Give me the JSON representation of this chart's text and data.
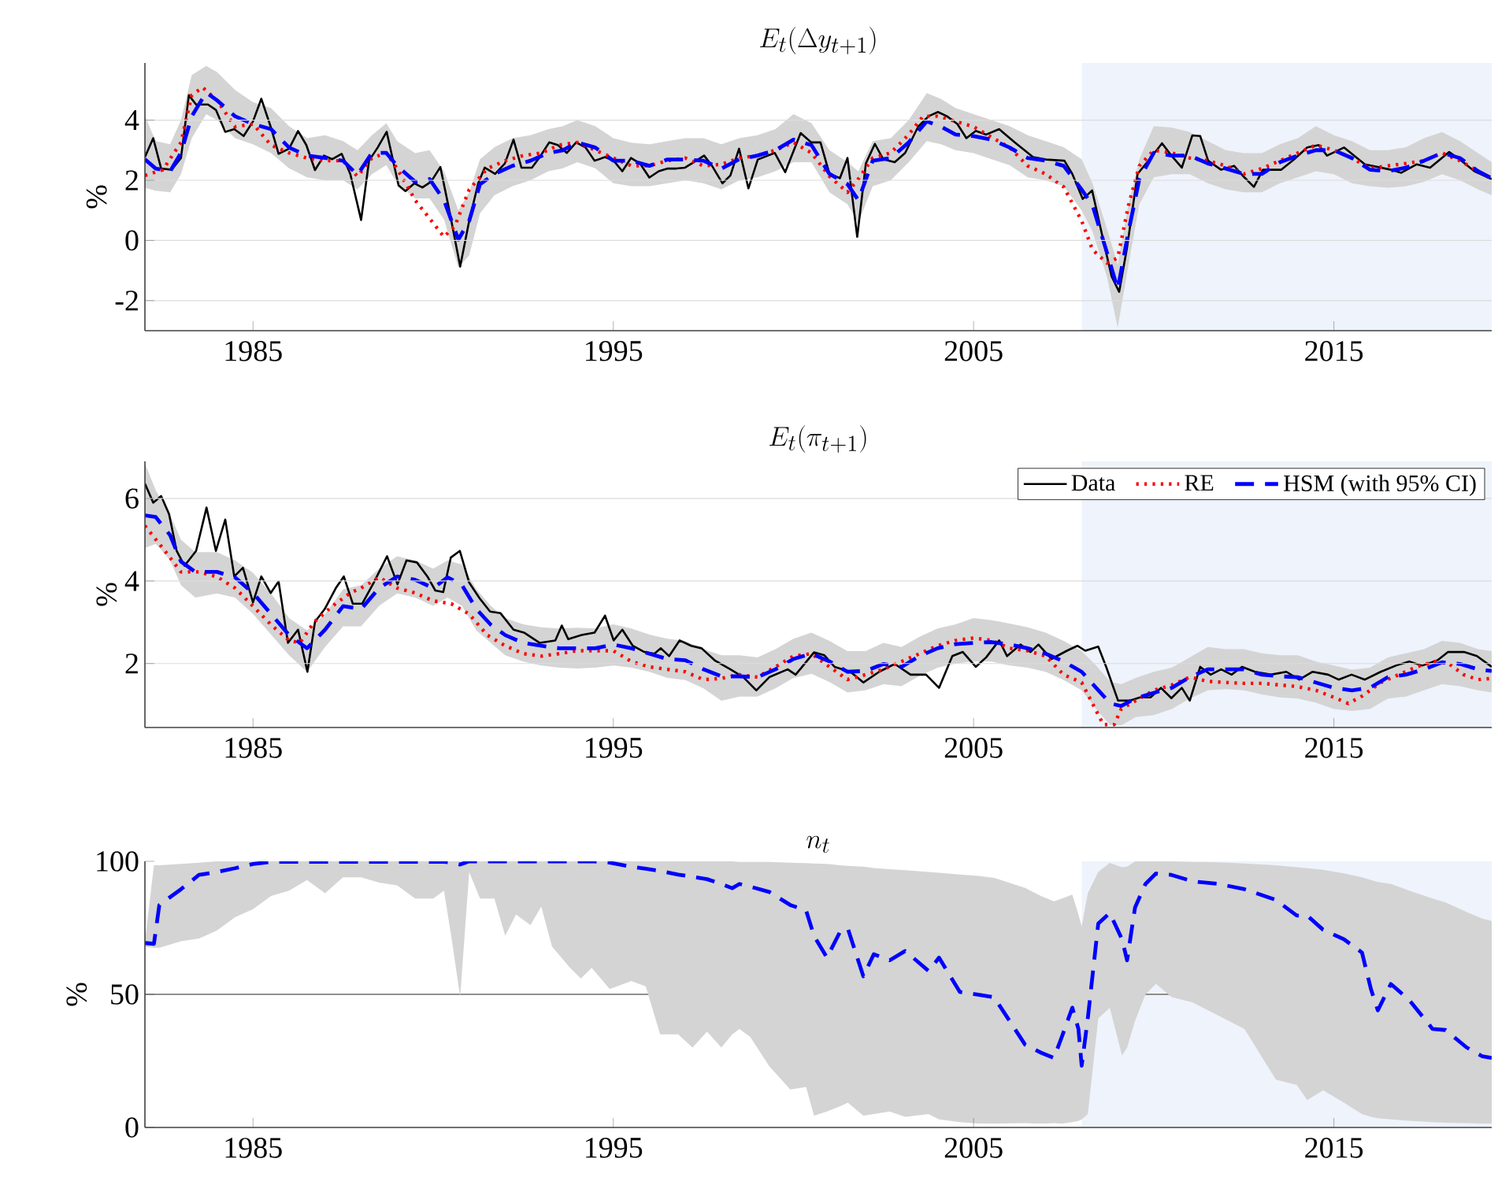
{
  "chart_data": [
    {
      "type": "line",
      "title": "E_t(\\Delta y_{t+1})",
      "ylabel": "%",
      "xlim": [
        1982,
        2019.38
      ],
      "xticks": [
        1985,
        1995,
        2005,
        2015
      ],
      "ylim": [
        -3,
        5.9
      ],
      "yticks": [
        -2,
        0,
        2,
        4
      ],
      "grid": "y",
      "bands": [
        {
          "axis": "x",
          "from": 2008,
          "to": 2019.38,
          "color": "#eef3fc"
        }
      ],
      "series": [
        {
          "color": "#000000",
          "line_style": "solid",
          "x": [
            1982.0,
            1982.23,
            1982.45,
            1982.74,
            1983.0,
            1983.22,
            1983.42,
            1983.75,
            1983.97,
            1984.23,
            1984.48,
            1984.74,
            1985.0,
            1985.23,
            1985.49,
            1985.71,
            1986.0,
            1986.25,
            1986.48,
            1986.72,
            1986.97,
            1987.2,
            1987.46,
            1987.7,
            1988.0,
            1988.22,
            1988.46,
            1988.71,
            1989.04,
            1989.23,
            1989.48,
            1989.7,
            1989.94,
            1990.2,
            1990.45,
            1990.75,
            1991.0,
            1991.25,
            1991.43,
            1991.72,
            1991.99,
            1992.23,
            1992.45,
            1992.74,
            1992.96,
            1993.22,
            1993.46,
            1993.71,
            1993.97,
            1994.23,
            1994.48,
            1994.77,
            1995.01,
            1995.25,
            1995.49,
            1995.74,
            1996.0,
            1996.26,
            1996.51,
            1996.75,
            1996.99,
            1997.23,
            1997.52,
            1997.74,
            1998.03,
            1998.25,
            1998.49,
            1998.75,
            1999.01,
            1999.48,
            1999.77,
            2000.2,
            2000.49,
            2000.75,
            2001.0,
            2001.29,
            2001.5,
            2001.77,
            2002.01,
            2002.26,
            2002.49,
            2002.81,
            2003.1,
            2003.46,
            2003.75,
            2004.01,
            2004.26,
            2004.55,
            2004.8,
            2005.06,
            2005.35,
            2005.71,
            2006.14,
            2006.65,
            2007.01,
            2007.52,
            2007.74,
            2008.03,
            2008.29,
            2008.61,
            2008.83,
            2009.04,
            2009.26,
            2009.55,
            2009.91,
            2010.23,
            2010.49,
            2010.78,
            2011.07,
            2011.29,
            2011.51,
            2011.87,
            2012.23,
            2012.49,
            2012.78,
            2013.03,
            2013.54,
            2013.9,
            2014.26,
            2014.58,
            2014.81,
            2015.28,
            2015.86,
            2016.59,
            2016.87,
            2017.3,
            2017.67,
            2018.2,
            2018.54,
            2018.9,
            2019.38
          ],
          "values": [
            2.77,
            3.4,
            2.39,
            2.35,
            2.74,
            4.83,
            4.52,
            4.52,
            4.34,
            3.61,
            3.7,
            3.47,
            3.96,
            4.71,
            3.78,
            2.88,
            3.05,
            3.64,
            3.17,
            2.34,
            2.82,
            2.7,
            2.88,
            2.21,
            0.68,
            2.65,
            3.09,
            3.61,
            1.83,
            1.64,
            1.9,
            1.76,
            1.95,
            2.44,
            0.99,
            -0.87,
            0.65,
            1.9,
            2.42,
            2.21,
            2.56,
            3.35,
            2.42,
            2.42,
            2.77,
            3.26,
            3.17,
            2.91,
            3.26,
            3.09,
            2.65,
            2.77,
            2.65,
            2.3,
            2.74,
            2.56,
            2.09,
            2.3,
            2.39,
            2.39,
            2.42,
            2.6,
            2.82,
            2.48,
            1.9,
            2.16,
            3.05,
            1.73,
            2.69,
            2.91,
            2.27,
            3.57,
            3.26,
            3.26,
            2.21,
            2.07,
            2.74,
            0.12,
            2.56,
            3.21,
            2.7,
            2.6,
            2.91,
            3.78,
            4.13,
            4.27,
            4.13,
            3.87,
            3.4,
            3.64,
            3.52,
            3.7,
            3.26,
            2.77,
            2.69,
            2.65,
            2.21,
            1.38,
            1.66,
            -0.05,
            -1.19,
            -1.71,
            -0.23,
            2.21,
            2.74,
            3.23,
            2.82,
            2.42,
            3.49,
            3.47,
            2.65,
            2.35,
            2.48,
            2.13,
            1.78,
            2.35,
            2.35,
            2.7,
            3.09,
            3.17,
            2.82,
            3.09,
            2.53,
            2.35,
            2.25,
            2.53,
            2.42,
            2.94,
            2.65,
            2.3,
            2.04
          ]
        },
        {
          "color": "#ff0000",
          "line_style": "dotted",
          "x": [
            1982.0,
            1982.5,
            1983.0,
            1983.3,
            1983.6,
            1984.0,
            1984.5,
            1985.0,
            1985.5,
            1986.0,
            1986.5,
            1987.0,
            1987.5,
            1987.9,
            1988.3,
            1988.7,
            1989.0,
            1989.5,
            1989.9,
            1990.3,
            1990.6,
            1991.0,
            1991.5,
            1992.0,
            1992.5,
            1993.0,
            1993.5,
            1994.0,
            1994.5,
            1995.0,
            1995.5,
            1996.0,
            1996.5,
            1997.0,
            1997.5,
            1998.0,
            1998.5,
            1999.0,
            1999.5,
            2000.0,
            2000.5,
            2001.0,
            2001.5,
            2001.8,
            2002.2,
            2002.7,
            2003.2,
            2003.6,
            2004.0,
            2004.5,
            2005.0,
            2005.5,
            2006.0,
            2006.5,
            2007.0,
            2007.5,
            2008.0,
            2008.3,
            2008.7,
            2009.0,
            2009.3,
            2009.6,
            2010.0,
            2010.5,
            2011.0,
            2011.5,
            2012.0,
            2012.5,
            2013.0,
            2013.5,
            2014.0,
            2014.5,
            2015.0,
            2015.5,
            2016.0,
            2016.5,
            2017.0,
            2017.5,
            2018.0,
            2018.5,
            2019.0,
            2019.38
          ],
          "values": [
            2.16,
            2.35,
            3.26,
            4.83,
            5.09,
            4.66,
            3.78,
            3.87,
            3.17,
            2.91,
            2.74,
            2.65,
            2.65,
            2.13,
            2.74,
            2.91,
            2.39,
            1.34,
            0.73,
            0.12,
            0.47,
            1.69,
            2.39,
            2.65,
            2.82,
            2.91,
            3.17,
            3.26,
            3.0,
            2.74,
            2.48,
            2.48,
            2.65,
            2.74,
            2.48,
            2.53,
            2.74,
            2.82,
            3.0,
            3.26,
            2.91,
            2.13,
            1.6,
            2.04,
            2.74,
            2.91,
            3.52,
            4.13,
            4.13,
            3.96,
            3.78,
            3.43,
            3.09,
            2.48,
            2.21,
            1.78,
            0.65,
            -0.31,
            -0.75,
            -0.58,
            1.17,
            2.48,
            3.0,
            2.91,
            2.74,
            2.65,
            2.48,
            2.21,
            2.39,
            2.65,
            2.91,
            3.17,
            3.0,
            2.74,
            2.39,
            2.48,
            2.56,
            2.65,
            2.91,
            2.65,
            2.3,
            2.04
          ]
        },
        {
          "color": "#0000ff",
          "line_style": "dashed",
          "x": [
            1982.0,
            1982.3,
            1982.7,
            1983.0,
            1983.3,
            1983.7,
            1984.0,
            1984.5,
            1985.0,
            1985.5,
            1986.0,
            1986.5,
            1987.0,
            1987.5,
            1987.9,
            1988.3,
            1988.7,
            1989.0,
            1989.5,
            1989.9,
            1990.3,
            1990.7,
            1991.0,
            1991.3,
            1991.7,
            1992.2,
            1992.7,
            1993.2,
            1993.6,
            1994.0,
            1994.5,
            1995.0,
            1995.5,
            1996.0,
            1996.5,
            1997.0,
            1997.5,
            1998.0,
            1998.5,
            1999.0,
            1999.5,
            2000.0,
            2000.5,
            2001.0,
            2001.5,
            2001.8,
            2002.2,
            2002.7,
            2003.2,
            2003.7,
            2004.1,
            2004.5,
            2005.0,
            2005.5,
            2006.0,
            2006.5,
            2007.0,
            2007.5,
            2008.0,
            2008.3,
            2008.7,
            2009.0,
            2009.3,
            2009.6,
            2010.0,
            2010.5,
            2011.0,
            2011.5,
            2012.0,
            2012.5,
            2013.0,
            2013.5,
            2014.0,
            2014.5,
            2015.0,
            2015.5,
            2016.0,
            2016.5,
            2017.0,
            2017.5,
            2018.0,
            2018.5,
            2019.0,
            2019.38
          ],
          "values": [
            2.7,
            2.39,
            2.3,
            2.91,
            4.13,
            4.92,
            4.66,
            4.13,
            3.87,
            3.7,
            3.09,
            2.82,
            2.74,
            2.65,
            2.18,
            2.91,
            2.91,
            2.48,
            1.95,
            2.04,
            1.34,
            0.03,
            0.65,
            1.87,
            2.21,
            2.48,
            2.65,
            2.91,
            3.0,
            3.26,
            3.09,
            2.65,
            2.65,
            2.48,
            2.69,
            2.69,
            2.65,
            2.39,
            2.7,
            2.82,
            3.0,
            3.35,
            3.17,
            2.21,
            1.87,
            1.34,
            2.65,
            2.74,
            3.26,
            3.96,
            3.78,
            3.52,
            3.47,
            3.35,
            3.09,
            2.74,
            2.65,
            2.48,
            1.69,
            1.17,
            -0.4,
            -1.62,
            0.3,
            2.04,
            2.91,
            2.82,
            2.82,
            2.56,
            2.39,
            2.21,
            2.21,
            2.6,
            2.82,
            3.0,
            3.0,
            2.74,
            2.35,
            2.3,
            2.42,
            2.65,
            2.91,
            2.74,
            2.3,
            2.07
          ],
          "lower": [
            1.75,
            1.65,
            1.6,
            2.2,
            3.4,
            4.2,
            4.0,
            3.4,
            3.2,
            2.9,
            2.4,
            2.1,
            2.0,
            2.0,
            1.7,
            2.2,
            2.5,
            1.9,
            1.4,
            1.4,
            0.7,
            -0.9,
            -0.5,
            0.9,
            1.5,
            1.8,
            2.0,
            2.3,
            2.4,
            2.6,
            2.4,
            1.9,
            1.8,
            1.8,
            1.9,
            2.0,
            1.9,
            1.7,
            2.0,
            2.1,
            2.3,
            2.6,
            2.6,
            1.6,
            1.2,
            0.6,
            1.8,
            2.0,
            2.6,
            3.3,
            3.2,
            3.0,
            2.9,
            2.7,
            2.5,
            2.1,
            2.0,
            1.8,
            1.0,
            0.3,
            -1.2,
            -2.9,
            -0.8,
            1.2,
            2.1,
            2.2,
            2.2,
            1.9,
            1.7,
            1.6,
            1.6,
            1.9,
            2.1,
            2.3,
            2.2,
            1.9,
            1.8,
            1.75,
            1.8,
            1.95,
            2.2,
            2.0,
            1.7,
            1.5
          ],
          "upper": [
            4.13,
            3.3,
            3.2,
            4.0,
            5.5,
            5.8,
            5.6,
            5.0,
            4.6,
            4.4,
            3.8,
            3.4,
            3.5,
            3.3,
            3.0,
            3.5,
            3.9,
            3.3,
            2.9,
            3.0,
            2.3,
            1.0,
            1.6,
            2.7,
            3.1,
            3.4,
            3.5,
            3.7,
            3.8,
            4.0,
            3.8,
            3.4,
            3.25,
            3.2,
            3.3,
            3.4,
            3.4,
            3.2,
            3.4,
            3.5,
            3.7,
            4.2,
            3.9,
            3.0,
            2.6,
            2.3,
            3.3,
            3.4,
            4.0,
            4.9,
            4.7,
            4.4,
            4.2,
            4.0,
            3.8,
            3.5,
            3.3,
            3.1,
            2.7,
            1.9,
            0.4,
            -0.8,
            1.2,
            2.7,
            3.8,
            3.75,
            3.6,
            3.3,
            3.0,
            2.9,
            2.9,
            3.2,
            3.4,
            3.8,
            3.5,
            3.3,
            3.0,
            3.0,
            3.1,
            3.4,
            3.6,
            3.3,
            2.9,
            2.6
          ]
        }
      ]
    },
    {
      "type": "line",
      "title": "E_t(\\pi_{t+1})",
      "ylabel": "%",
      "xlim": [
        1982,
        2019.38
      ],
      "xticks": [
        1985,
        1995,
        2005,
        2015
      ],
      "ylim": [
        0.45,
        6.9
      ],
      "yticks": [
        2,
        4,
        6
      ],
      "grid": "y",
      "legend": "top right",
      "bands": [
        {
          "axis": "x",
          "from": 2008,
          "to": 2019.38,
          "color": "#eef3fc"
        }
      ],
      "series": [
        {
          "name": "Data",
          "color": "#000000",
          "line_style": "solid",
          "x": [
            1982.0,
            1982.23,
            1982.45,
            1982.67,
            1982.88,
            1983.1,
            1983.42,
            1983.71,
            1983.97,
            1984.23,
            1984.48,
            1984.72,
            1985.0,
            1985.23,
            1985.49,
            1985.71,
            1985.97,
            1986.25,
            1986.51,
            1986.72,
            1986.99,
            1987.3,
            1987.52,
            1987.77,
            1988.03,
            1988.35,
            1988.72,
            1989.01,
            1989.26,
            1989.55,
            1989.84,
            1990.06,
            1990.28,
            1990.49,
            1990.74,
            1991.0,
            1991.29,
            1991.58,
            1991.87,
            1992.23,
            1992.52,
            1992.96,
            1993.39,
            1993.57,
            1993.75,
            1994.12,
            1994.48,
            1994.77,
            1995.01,
            1995.25,
            1995.54,
            1995.86,
            1996.14,
            1996.32,
            1996.55,
            1996.84,
            1997.16,
            1997.45,
            1997.81,
            1998.25,
            1998.61,
            1998.97,
            1999.33,
            1999.84,
            2000.06,
            2000.57,
            2000.86,
            2001.14,
            2001.58,
            2001.94,
            2002.38,
            2002.81,
            2003.25,
            2003.68,
            2004.04,
            2004.41,
            2004.7,
            2005.06,
            2005.35,
            2005.71,
            2005.93,
            2006.3,
            2006.58,
            2006.8,
            2007.16,
            2007.59,
            2007.88,
            2008.1,
            2008.46,
            2008.68,
            2009.01,
            2009.33,
            2009.62,
            2009.91,
            2010.2,
            2010.49,
            2010.78,
            2011.0,
            2011.29,
            2011.58,
            2011.87,
            2012.16,
            2012.45,
            2012.81,
            2013.25,
            2013.68,
            2014.04,
            2014.41,
            2014.84,
            2015.13,
            2015.49,
            2015.86,
            2016.3,
            2016.72,
            2017.09,
            2017.45,
            2017.88,
            2018.17,
            2018.61,
            2018.97,
            2019.38
          ],
          "values": [
            6.36,
            5.9,
            6.06,
            5.62,
            4.73,
            4.37,
            4.73,
            5.78,
            4.73,
            5.49,
            4.11,
            4.32,
            3.48,
            4.11,
            3.71,
            3.99,
            2.5,
            2.82,
            1.8,
            3.01,
            3.32,
            3.83,
            4.11,
            3.45,
            3.45,
            3.96,
            4.6,
            3.92,
            4.5,
            4.45,
            4.11,
            3.77,
            3.73,
            4.57,
            4.73,
            3.96,
            3.58,
            3.26,
            3.22,
            2.82,
            2.75,
            2.5,
            2.56,
            2.92,
            2.59,
            2.69,
            2.75,
            3.16,
            2.56,
            2.82,
            2.43,
            2.28,
            2.24,
            2.37,
            2.18,
            2.56,
            2.43,
            2.37,
            2.08,
            1.86,
            1.67,
            1.35,
            1.67,
            1.86,
            1.73,
            2.27,
            2.2,
            1.92,
            1.8,
            1.54,
            1.8,
            1.99,
            1.73,
            1.73,
            1.41,
            2.18,
            2.28,
            1.92,
            2.15,
            2.56,
            2.18,
            2.46,
            2.28,
            2.46,
            2.11,
            2.31,
            2.43,
            2.31,
            2.41,
            1.92,
            1.1,
            1.1,
            1.18,
            1.18,
            1.41,
            1.16,
            1.41,
            1.1,
            1.92,
            1.73,
            1.86,
            1.73,
            1.92,
            1.8,
            1.73,
            1.8,
            1.61,
            1.8,
            1.73,
            1.61,
            1.73,
            1.61,
            1.8,
            1.95,
            2.05,
            1.95,
            2.08,
            2.28,
            2.28,
            2.18,
            1.92
          ]
        },
        {
          "name": "RE",
          "color": "#ff0000",
          "line_style": "dotted",
          "x": [
            1982.0,
            1982.5,
            1983.0,
            1983.5,
            1984.0,
            1984.5,
            1985.0,
            1985.5,
            1986.0,
            1986.3,
            1986.7,
            1987.2,
            1987.7,
            1988.0,
            1988.5,
            1989.0,
            1989.5,
            1990.0,
            1990.5,
            1991.0,
            1991.5,
            1992.0,
            1992.5,
            1993.0,
            1993.5,
            1994.0,
            1994.5,
            1995.0,
            1995.5,
            1996.0,
            1996.5,
            1997.0,
            1997.5,
            1998.0,
            1998.5,
            1999.0,
            1999.5,
            2000.0,
            2000.5,
            2001.0,
            2001.5,
            2002.0,
            2002.5,
            2003.0,
            2003.5,
            2004.0,
            2004.5,
            2005.0,
            2005.5,
            2006.0,
            2006.5,
            2007.0,
            2007.5,
            2008.0,
            2008.3,
            2008.6,
            2008.9,
            2009.1,
            2009.5,
            2010.0,
            2010.5,
            2011.0,
            2011.5,
            2012.0,
            2012.5,
            2013.0,
            2013.5,
            2014.0,
            2014.5,
            2015.0,
            2015.4,
            2015.8,
            2016.3,
            2016.8,
            2017.3,
            2017.8,
            2018.2,
            2018.6,
            2019.0,
            2019.38
          ],
          "values": [
            5.34,
            4.79,
            4.22,
            4.22,
            4.1,
            3.83,
            3.39,
            2.94,
            2.56,
            2.5,
            3.01,
            3.39,
            3.71,
            3.83,
            4.09,
            3.83,
            3.71,
            3.52,
            3.45,
            3.2,
            2.69,
            2.43,
            2.24,
            2.18,
            2.24,
            2.31,
            2.31,
            2.31,
            2.05,
            1.92,
            1.86,
            1.8,
            1.61,
            1.64,
            1.73,
            1.67,
            1.92,
            2.18,
            2.24,
            1.92,
            1.61,
            1.73,
            1.86,
            2.05,
            2.24,
            2.43,
            2.56,
            2.62,
            2.56,
            2.37,
            2.31,
            2.18,
            1.73,
            1.54,
            1.03,
            0.52,
            0.52,
            0.9,
            1.1,
            1.35,
            1.48,
            1.67,
            1.57,
            1.54,
            1.52,
            1.52,
            1.48,
            1.44,
            1.35,
            1.18,
            1.03,
            1.22,
            1.54,
            1.73,
            1.92,
            2.05,
            1.99,
            1.73,
            1.61,
            1.64
          ]
        },
        {
          "name": "HSM (with 95% CI)",
          "color": "#0000ff",
          "line_style": "dashed",
          "x": [
            1982.0,
            1982.3,
            1982.7,
            1983.0,
            1983.4,
            1984.0,
            1984.5,
            1985.0,
            1985.5,
            1986.0,
            1986.5,
            1987.0,
            1987.5,
            1988.0,
            1988.5,
            1989.0,
            1989.5,
            1990.0,
            1990.4,
            1990.8,
            1991.2,
            1991.6,
            1992.0,
            1992.5,
            1993.0,
            1993.5,
            1994.0,
            1994.5,
            1995.0,
            1995.5,
            1996.0,
            1996.5,
            1997.0,
            1997.5,
            1998.0,
            1998.5,
            1999.0,
            1999.5,
            2000.0,
            2000.5,
            2001.0,
            2001.5,
            2002.0,
            2002.5,
            2003.0,
            2003.5,
            2004.0,
            2004.5,
            2005.0,
            2005.5,
            2006.0,
            2006.5,
            2007.0,
            2007.5,
            2008.0,
            2008.4,
            2008.8,
            2009.1,
            2009.5,
            2010.0,
            2010.5,
            2011.0,
            2011.5,
            2012.0,
            2012.5,
            2013.0,
            2013.5,
            2014.0,
            2014.5,
            2015.0,
            2015.5,
            2016.0,
            2016.5,
            2017.0,
            2017.5,
            2018.0,
            2018.5,
            2019.0,
            2019.38
          ],
          "values": [
            5.59,
            5.55,
            5.11,
            4.47,
            4.22,
            4.22,
            4.09,
            3.71,
            3.2,
            2.69,
            2.37,
            2.82,
            3.39,
            3.32,
            3.83,
            4.11,
            4.03,
            3.83,
            4.09,
            3.9,
            3.32,
            2.94,
            2.69,
            2.5,
            2.43,
            2.37,
            2.37,
            2.37,
            2.46,
            2.37,
            2.24,
            2.11,
            2.08,
            1.86,
            1.69,
            1.69,
            1.67,
            1.86,
            2.11,
            2.24,
            2.05,
            1.8,
            1.82,
            1.99,
            1.92,
            2.18,
            2.37,
            2.47,
            2.5,
            2.52,
            2.46,
            2.37,
            2.24,
            2.05,
            1.8,
            1.41,
            1.03,
            0.97,
            1.16,
            1.29,
            1.41,
            1.67,
            1.86,
            1.86,
            1.86,
            1.73,
            1.69,
            1.67,
            1.54,
            1.41,
            1.35,
            1.41,
            1.67,
            1.73,
            1.86,
            2.03,
            1.99,
            1.86,
            1.82
          ],
          "lower": [
            4.8,
            4.9,
            4.5,
            3.9,
            3.6,
            3.7,
            3.6,
            3.2,
            2.7,
            2.2,
            1.8,
            2.4,
            2.9,
            2.9,
            3.4,
            3.7,
            3.6,
            3.4,
            3.6,
            3.4,
            2.8,
            2.5,
            2.2,
            2.05,
            1.95,
            1.9,
            1.88,
            1.9,
            1.95,
            1.9,
            1.8,
            1.65,
            1.6,
            1.4,
            1.1,
            1.2,
            1.2,
            1.4,
            1.65,
            1.75,
            1.55,
            1.3,
            1.35,
            1.5,
            1.45,
            1.7,
            1.9,
            2.0,
            2.05,
            2.05,
            1.95,
            1.9,
            1.8,
            1.6,
            1.35,
            0.9,
            0.5,
            0.5,
            0.7,
            0.75,
            0.9,
            1.15,
            1.35,
            1.38,
            1.35,
            1.25,
            1.18,
            1.15,
            1.05,
            0.9,
            0.85,
            0.9,
            1.15,
            1.2,
            1.35,
            1.5,
            1.45,
            1.35,
            1.3
          ],
          "upper": [
            6.85,
            6.2,
            5.6,
            5.0,
            4.7,
            4.7,
            4.5,
            4.2,
            3.7,
            3.1,
            2.8,
            3.2,
            3.8,
            3.9,
            4.3,
            4.6,
            4.5,
            4.3,
            4.5,
            4.4,
            3.8,
            3.4,
            3.1,
            2.95,
            2.88,
            2.85,
            2.87,
            2.85,
            2.95,
            2.85,
            2.7,
            2.6,
            2.55,
            2.35,
            2.2,
            2.2,
            2.15,
            2.35,
            2.6,
            2.75,
            2.55,
            2.3,
            2.3,
            2.5,
            2.4,
            2.65,
            2.85,
            2.95,
            3.1,
            3.05,
            2.97,
            2.88,
            2.75,
            2.55,
            2.3,
            1.95,
            1.55,
            1.5,
            1.65,
            1.8,
            1.9,
            2.15,
            2.4,
            2.35,
            2.35,
            2.25,
            2.2,
            2.2,
            2.05,
            1.95,
            1.85,
            1.9,
            2.15,
            2.25,
            2.35,
            2.55,
            2.5,
            2.35,
            2.3
          ]
        }
      ]
    },
    {
      "type": "line",
      "title": "n_t",
      "ylabel": "%",
      "xlim": [
        1982,
        2019.38
      ],
      "xticks": [
        1985,
        1995,
        2005,
        2015
      ],
      "ylim": [
        0,
        100
      ],
      "yticks": [
        0,
        50,
        100
      ],
      "bands": [
        {
          "axis": "x",
          "from": 2008,
          "to": 2019.38,
          "color": "#eef3fc"
        }
      ],
      "ref_lines": [
        {
          "axis": "y",
          "value": 50,
          "color": "#808080"
        }
      ],
      "series": [
        {
          "color": "#0000ff",
          "line_style": "dashed",
          "x": [
            1982.0,
            1982.25,
            1982.4,
            1983.0,
            1983.5,
            1984.0,
            1984.5,
            1985.0,
            1985.5,
            1986.0,
            1986.5,
            1987.0,
            1987.5,
            1988.0,
            1988.5,
            1989.0,
            1989.5,
            1990.0,
            1990.3,
            1990.5,
            1990.75,
            1991.0,
            1991.3,
            1991.7,
            1992.0,
            1992.3,
            1992.7,
            1993.0,
            1993.3,
            1993.8,
            1994.1,
            1994.4,
            1994.9,
            1995.5,
            1995.9,
            1996.3,
            1996.8,
            1997.2,
            1997.6,
            1998.0,
            1998.3,
            1998.5,
            1998.8,
            1999.33,
            1999.91,
            2000.35,
            2000.57,
            2000.93,
            2001.3,
            2001.51,
            2001.94,
            2002.23,
            2002.67,
            2003.1,
            2003.75,
            2004.04,
            2004.62,
            2005.13,
            2005.57,
            2006.43,
            2006.87,
            2007.23,
            2007.45,
            2007.74,
            2007.91,
            2008.0,
            2008.17,
            2008.46,
            2008.78,
            2009.12,
            2009.26,
            2009.48,
            2009.77,
            2010.06,
            2010.49,
            2011.07,
            2011.8,
            2012.52,
            2013.39,
            2013.97,
            2014.26,
            2014.7,
            2015.28,
            2015.78,
            2016.03,
            2016.22,
            2016.58,
            2017.09,
            2017.74,
            2018.1,
            2018.68,
            2019.12,
            2019.38
          ],
          "values": [
            69.3,
            69,
            83.6,
            89.5,
            94.9,
            96.0,
            97.4,
            99.0,
            99.8,
            99.8,
            99.8,
            99.8,
            99.8,
            99.8,
            99.8,
            99.8,
            99.8,
            99.8,
            99.8,
            99.5,
            98.8,
            100,
            100,
            100,
            100,
            100,
            100,
            100,
            100,
            100,
            100,
            100,
            99.5,
            98.0,
            97.2,
            96.4,
            95,
            94.2,
            93.3,
            91.5,
            89.9,
            91.5,
            90.5,
            88.5,
            83.6,
            81.6,
            72,
            63.8,
            73.7,
            74.7,
            56.8,
            65.1,
            62.8,
            66.3,
            58.8,
            63.8,
            50.9,
            49.9,
            48.9,
            31.1,
            28.1,
            26.1,
            34.1,
            45.0,
            37.0,
            23.2,
            41.0,
            76.6,
            80.6,
            70.7,
            62.8,
            82.6,
            91.5,
            95.4,
            94.9,
            92.5,
            91.5,
            89.5,
            85.5,
            79.6,
            79.6,
            74.3,
            70.7,
            65.7,
            51.9,
            44.0,
            53.9,
            47.9,
            37.0,
            36.6,
            30.1,
            26.7,
            26.1
          ],
          "lower": [
            68,
            67.5,
            67.5,
            70,
            71,
            74,
            79,
            82,
            87,
            89,
            93,
            88,
            94,
            94,
            92,
            91,
            86,
            86,
            89,
            72,
            49,
            96,
            86,
            86,
            72,
            80,
            76,
            83,
            68,
            60,
            56,
            60,
            52,
            55,
            53,
            35,
            35,
            30,
            36,
            30,
            35,
            37,
            34,
            23,
            14.3,
            15.2,
            4.4,
            6,
            8,
            9.3,
            4.4,
            5,
            6,
            4,
            5,
            3,
            2,
            1.5,
            1.4,
            1.6,
            1.4,
            1.6,
            1.4,
            2,
            2.4,
            3,
            5,
            41,
            45,
            27,
            30,
            40,
            50,
            54,
            49,
            47,
            42,
            37,
            18,
            16,
            10.3,
            14,
            9.3,
            5,
            4,
            3.5,
            3,
            2.5,
            2,
            1.8,
            1.6,
            1.5,
            1.4
          ],
          "upper": [
            70,
            98.5,
            98.5,
            99,
            99.5,
            100,
            100,
            100,
            100,
            100,
            100,
            100,
            100,
            100,
            100,
            100,
            100,
            100,
            100,
            100,
            100,
            100,
            100,
            100,
            100,
            100,
            100,
            100,
            100,
            100,
            100,
            100,
            100,
            100,
            100,
            100,
            100,
            100,
            100,
            100,
            100,
            99.8,
            99.8,
            99.8,
            99.5,
            99.3,
            99.2,
            99,
            98.5,
            98.3,
            98,
            97.5,
            97,
            96.7,
            96,
            95.7,
            95,
            94.5,
            93.8,
            90,
            87,
            85,
            86,
            87.5,
            80,
            75.6,
            88,
            96,
            99.4,
            97.8,
            98,
            100,
            100,
            100,
            100,
            99.8,
            99.6,
            99.2,
            98.5,
            97.8,
            97.4,
            96.8,
            95.5,
            94,
            93,
            92.2,
            91.5,
            89,
            86,
            84.5,
            81,
            78.5,
            77.6
          ]
        }
      ]
    }
  ]
}
